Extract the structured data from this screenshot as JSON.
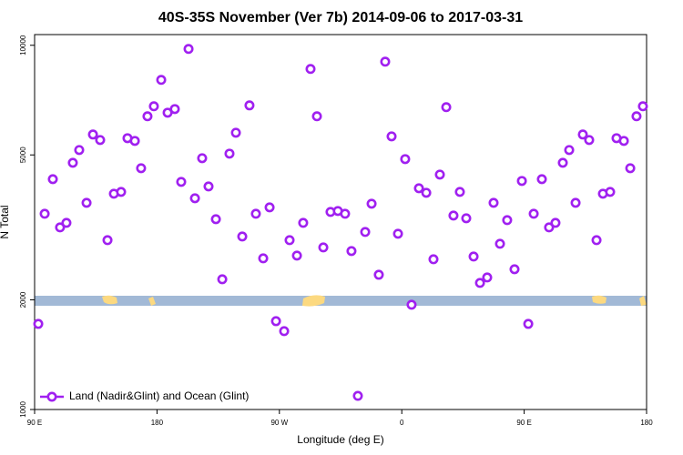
{
  "chart_data": {
    "type": "scatter",
    "title": "40S-35S November (Ver 7b)   2014-09-06 to 2017-03-31",
    "x_label": "Longitude (deg E)",
    "y_label": "N Total",
    "log_y": true,
    "grid": false,
    "legend": "bottom-left",
    "xlim": [
      90,
      540
    ],
    "ylim": [
      1000,
      10700
    ],
    "xticks": [
      {
        "value": 90,
        "label": "90 E"
      },
      180,
      {
        "value": 270,
        "label": "90 W"
      },
      {
        "value": 360,
        "label": "0"
      },
      {
        "value": 450,
        "label": "90 E"
      },
      {
        "value": 540,
        "label": "180"
      }
    ],
    "yticks": [
      1000,
      2000,
      5000,
      10000
    ],
    "series": [
      {
        "name": "Land (Nadir&Glint) and Ocean (Glint)",
        "color": "#a020f0",
        "x": [
          92.7,
          97.4,
          103.4,
          108.7,
          113.4,
          118.1,
          122.8,
          128.2,
          132.9,
          138.2,
          143.6,
          148.3,
          153.6,
          158.3,
          163.7,
          168.3,
          173.0,
          177.7,
          183.1,
          187.8,
          193.1,
          197.8,
          203.2,
          207.9,
          213.2,
          217.9,
          223.3,
          228.0,
          233.3,
          238.0,
          242.7,
          248.0,
          252.7,
          258.1,
          262.8,
          267.5,
          273.5,
          277.5,
          282.9,
          287.5,
          292.9,
          297.6,
          302.3,
          307.6,
          313.0,
          318.3,
          323.0,
          327.7,
          333.1,
          337.8,
          343.1,
          347.8,
          352.5,
          357.2,
          362.5,
          367.2,
          372.6,
          378.0,
          383.3,
          388.0,
          392.7,
          398.0,
          402.7,
          407.4,
          412.8,
          417.5,
          422.8,
          427.5,
          432.2,
          437.5,
          442.9,
          448.3,
          453.0,
          457.0,
          463.0,
          468.3,
          473.0,
          478.4,
          483.1,
          487.8,
          493.1,
          497.8,
          503.2,
          507.9,
          513.2,
          517.9,
          523.3,
          528.0,
          532.6,
          537.3
        ],
        "values": [
          1718,
          3447,
          4290,
          3162,
          3254,
          4758,
          5158,
          3694,
          5689,
          5495,
          2917,
          3913,
          3958,
          5559,
          5464,
          4597,
          6383,
          6800,
          8035,
          6531,
          6683,
          4217,
          9772,
          3802,
          4898,
          4097,
          3331,
          2278,
          5041,
          5754,
          2985,
          6839,
          3447,
          2600,
          3589,
          1748,
          1641,
          2917,
          2646,
          3254,
          8610,
          6383,
          2786,
          3487,
          3508,
          3447,
          2723,
          1090,
          3072,
          3673,
          2344,
          9016,
          5623,
          3038,
          4870,
          1939,
          4050,
          3936,
          2585,
          4416,
          6761,
          3408,
          3958,
          3350,
          2630,
          2226,
          2304,
          3694,
          2851,
          3311,
          2427,
          4242,
          1718,
          3447,
          4290,
          3162,
          3254,
          4758,
          5158,
          3694,
          5689,
          5495,
          2917,
          3913,
          3958,
          5559,
          5464,
          4597,
          6383,
          6800
        ]
      }
    ]
  }
}
